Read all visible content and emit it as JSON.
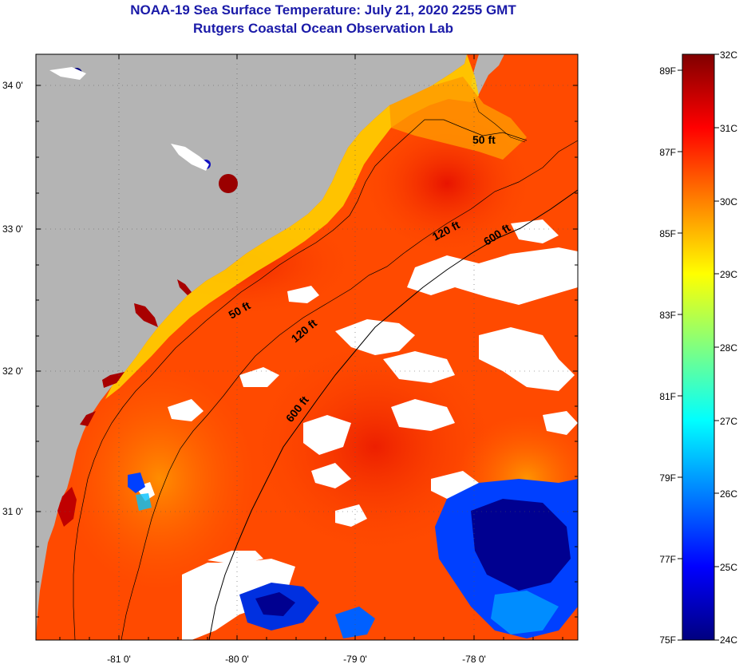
{
  "title": {
    "line1": "NOAA-19 Sea Surface Temperature:  July 21, 2020 2255 GMT",
    "line2": "Rutgers Coastal Ocean Observation Lab"
  },
  "map": {
    "lon_ticks": [
      "-81 0'",
      "-80 0'",
      "-79 0'",
      "-78 0'"
    ],
    "lat_ticks": [
      "34 0'",
      "33 0'",
      "32 0'",
      "31 0'"
    ],
    "land_color": "#b4b4b4",
    "cloud_color": "#ffffff",
    "contour_labels": [
      "50 ft",
      "120 ft",
      "600 ft",
      "50 ft",
      "120 ft",
      "600 ft"
    ]
  },
  "colorbar": {
    "min_c": 24,
    "max_c": 32,
    "celsius_labels": [
      "32C",
      "31C",
      "30C",
      "29C",
      "28C",
      "27C",
      "26C",
      "25C",
      "24C"
    ],
    "fahrenheit_labels": [
      "89F",
      "87F",
      "85F",
      "83F",
      "81F",
      "79F",
      "77F",
      "75F"
    ],
    "colors": [
      "#000080",
      "#0000ff",
      "#0080ff",
      "#00ffff",
      "#80ff80",
      "#ffff00",
      "#ff8000",
      "#ff0000",
      "#800000"
    ]
  }
}
